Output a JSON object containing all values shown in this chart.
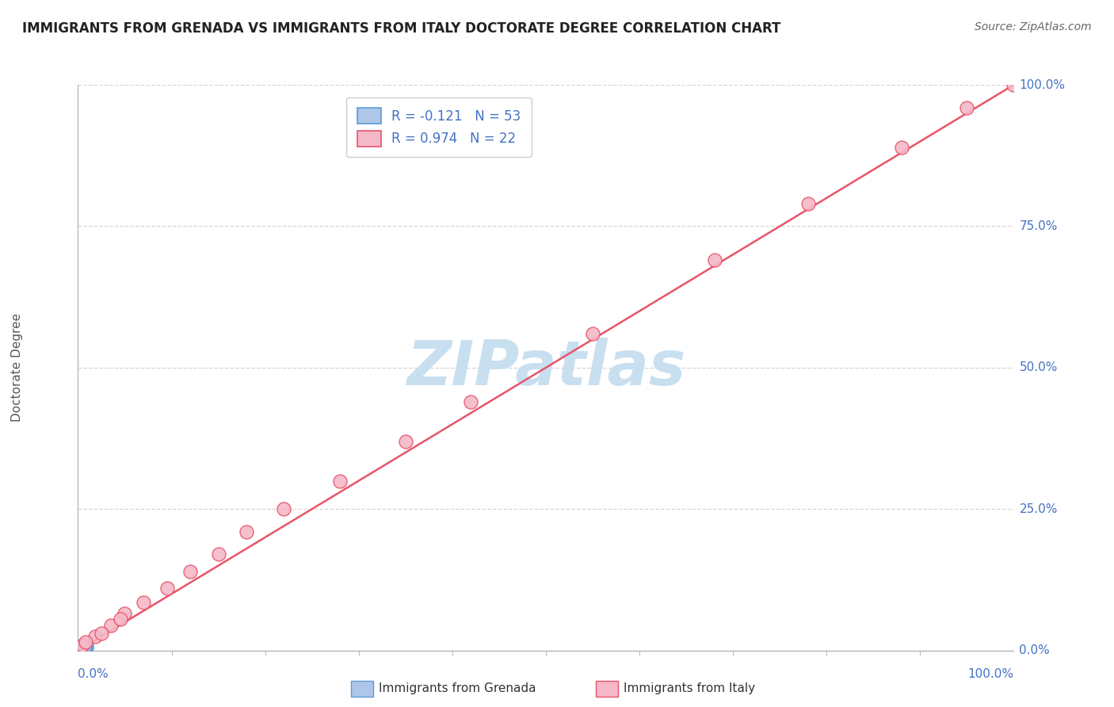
{
  "title": "IMMIGRANTS FROM GRENADA VS IMMIGRANTS FROM ITALY DOCTORATE DEGREE CORRELATION CHART",
  "source": "Source: ZipAtlas.com",
  "ylabel": "Doctorate Degree",
  "ytick_labels": [
    "0.0%",
    "25.0%",
    "50.0%",
    "75.0%",
    "100.0%"
  ],
  "ytick_values": [
    0,
    25,
    50,
    75,
    100
  ],
  "xtick_left": "0.0%",
  "xtick_right": "100.0%",
  "legend1_label": "R = -0.121   N = 53",
  "legend2_label": "R = 0.974   N = 22",
  "series1_color": "#aec6e8",
  "series2_color": "#f4b8c8",
  "series1_edge": "#5b9bd5",
  "series2_edge": "#e8546a",
  "trendline_color": "#e8546a",
  "grid_color": "#cccccc",
  "watermark_text": "ZIPatlas",
  "watermark_color": "#c8dff0",
  "axis_label_color": "#4472c4",
  "title_color": "#222222",
  "source_color": "#666666",
  "ylabel_color": "#555555",
  "legend_text_color": "#4472c4",
  "bottom_label_color": "#333333",
  "grenada_x": [
    0.3,
    0.5,
    0.8,
    0.2,
    0.6,
    0.4,
    1.0,
    0.3,
    0.5,
    0.7,
    0.4,
    0.6,
    0.2,
    0.5,
    0.3,
    0.4,
    0.6,
    0.3,
    0.5,
    0.7,
    0.2,
    0.4,
    0.6,
    0.3,
    0.5,
    0.8,
    0.4,
    0.3,
    0.5,
    0.7,
    0.6,
    0.3,
    0.5,
    0.8,
    0.2,
    0.4,
    0.6,
    0.7,
    0.3,
    0.5,
    0.6,
    0.8,
    0.3,
    0.5,
    0.4,
    0.6,
    0.7,
    0.3,
    0.5,
    0.6,
    0.3,
    0.5,
    0.7
  ],
  "grenada_y": [
    0.4,
    0.6,
    0.3,
    0.8,
    0.5,
    0.3,
    0.6,
    0.7,
    0.5,
    0.4,
    0.2,
    0.6,
    0.8,
    0.5,
    0.3,
    0.5,
    0.7,
    0.4,
    0.2,
    0.6,
    0.8,
    0.5,
    0.3,
    0.6,
    0.4,
    0.7,
    0.2,
    0.6,
    0.5,
    0.3,
    0.5,
    0.7,
    0.4,
    0.2,
    0.6,
    0.5,
    0.3,
    0.6,
    0.7,
    0.4,
    0.2,
    0.6,
    0.8,
    0.5,
    0.3,
    0.5,
    0.4,
    0.7,
    0.2,
    0.6,
    0.5,
    0.3,
    0.5
  ],
  "italy_x": [
    0.5,
    1.8,
    3.5,
    5.0,
    7.0,
    9.5,
    12.0,
    15.0,
    18.0,
    22.0,
    28.0,
    35.0,
    42.0,
    55.0,
    68.0,
    78.0,
    88.0,
    95.0,
    100.0,
    2.5,
    4.5,
    0.8
  ],
  "italy_y": [
    1.0,
    2.5,
    4.5,
    6.5,
    8.5,
    11.0,
    14.0,
    17.0,
    21.0,
    25.0,
    30.0,
    37.0,
    44.0,
    56.0,
    69.0,
    79.0,
    89.0,
    96.0,
    100.0,
    3.0,
    5.5,
    1.5
  ],
  "xlim": [
    0,
    100
  ],
  "ylim": [
    0,
    100
  ]
}
